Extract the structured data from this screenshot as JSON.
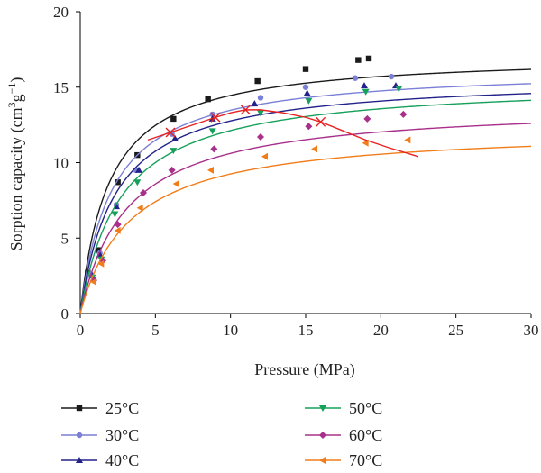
{
  "chart_data": {
    "type": "scatter",
    "xlabel": "Pressure (MPa)",
    "ylabel_parts": [
      "Sorption capacity (cm",
      "3",
      "g",
      "−1",
      ")"
    ],
    "xlim": [
      0,
      30
    ],
    "ylim": [
      0,
      20
    ],
    "xticks": [
      0,
      5,
      10,
      15,
      20,
      25,
      30
    ],
    "yticks": [
      0,
      5,
      10,
      15,
      20
    ],
    "grid": false,
    "legend_placement": "bottom",
    "series": [
      {
        "name": "25°C",
        "color": "#1a1a1a",
        "marker": "square",
        "VL": 17.2,
        "PL": 1.9,
        "x": [
          0.5,
          1.2,
          2.5,
          3.8,
          6.2,
          8.5,
          11.8,
          15.0,
          18.5,
          19.2
        ],
        "y": [
          2.7,
          4.2,
          8.7,
          10.5,
          12.9,
          14.2,
          15.4,
          16.2,
          16.8,
          16.9
        ]
      },
      {
        "name": "30°C",
        "color": "#7b7fd6",
        "marker": "circle",
        "VL": 16.3,
        "PL": 2.1,
        "x": [
          0.7,
          1.3,
          2.4,
          3.7,
          6.1,
          8.8,
          12.0,
          15.0,
          18.3,
          20.7
        ],
        "y": [
          2.6,
          4.0,
          7.2,
          9.5,
          11.9,
          13.2,
          14.3,
          15.0,
          15.6,
          15.7
        ]
      },
      {
        "name": "40°C",
        "color": "#22228a",
        "marker": "triangle-up",
        "VL": 15.7,
        "PL": 2.3,
        "x": [
          0.8,
          1.3,
          2.4,
          3.9,
          6.3,
          8.8,
          11.6,
          15.1,
          18.9,
          21.0
        ],
        "y": [
          2.5,
          3.9,
          7.1,
          9.5,
          11.6,
          12.9,
          13.9,
          14.6,
          15.1,
          15.1
        ]
      },
      {
        "name": "50°C",
        "color": "#16a05a",
        "marker": "triangle-down",
        "VL": 15.4,
        "PL": 2.7,
        "x": [
          0.8,
          1.4,
          2.3,
          3.8,
          6.2,
          8.8,
          12.0,
          15.2,
          19.0,
          21.2
        ],
        "y": [
          2.4,
          3.6,
          6.6,
          8.7,
          10.8,
          12.1,
          13.3,
          14.1,
          14.7,
          14.9
        ]
      },
      {
        "name": "60°C",
        "color": "#a8308a",
        "marker": "diamond",
        "VL": 13.9,
        "PL": 3.1,
        "x": [
          0.9,
          1.5,
          2.5,
          4.2,
          6.1,
          8.9,
          12.0,
          15.2,
          19.1,
          21.5
        ],
        "y": [
          2.2,
          3.5,
          5.9,
          8.0,
          9.5,
          10.9,
          11.7,
          12.4,
          12.9,
          13.2
        ]
      },
      {
        "name": "70°C",
        "color": "#f07d1a",
        "marker": "triangle-left",
        "VL": 12.3,
        "PL": 3.3,
        "x": [
          0.9,
          1.4,
          2.5,
          4.0,
          6.4,
          8.7,
          12.3,
          15.6,
          19.0,
          21.8
        ],
        "y": [
          2.1,
          3.3,
          5.5,
          7.0,
          8.6,
          9.5,
          10.4,
          10.9,
          11.3,
          11.5
        ]
      }
    ],
    "cross_line": {
      "color": "#e82020",
      "x": [
        4.5,
        6.0,
        7.5,
        9.0,
        10.0,
        11.0,
        12.0,
        13.5,
        15.0,
        16.0,
        17.5,
        19.0,
        20.5,
        22.5
      ],
      "y": [
        11.5,
        12.0,
        12.5,
        13.0,
        13.3,
        13.5,
        13.5,
        13.3,
        13.0,
        12.7,
        12.1,
        11.5,
        11.0,
        10.4
      ],
      "markers_x": [
        6.0,
        9.0,
        11.0,
        16.0
      ],
      "markers_y": [
        12.0,
        13.0,
        13.5,
        12.7
      ]
    }
  }
}
